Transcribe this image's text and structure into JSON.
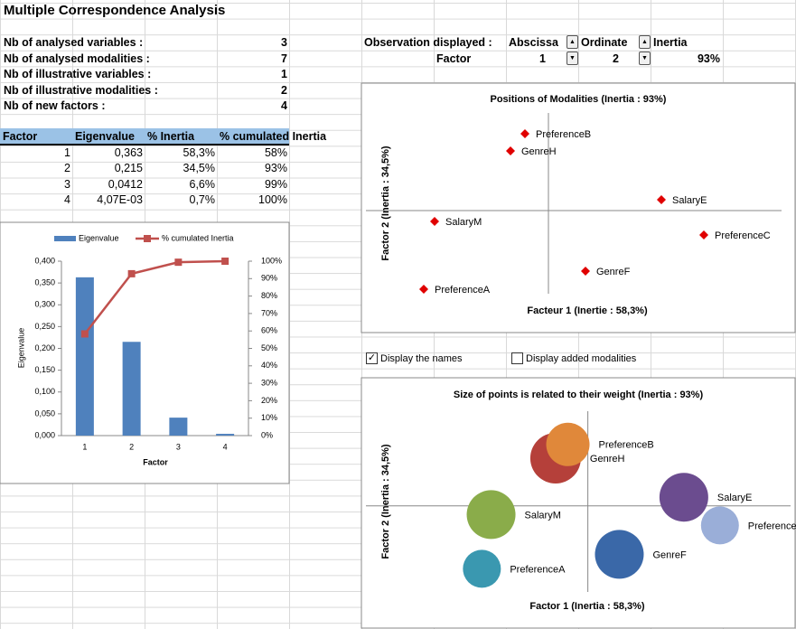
{
  "title": "Multiple Correspondence Analysis",
  "summary": [
    {
      "label": "Nb of analysed variables :",
      "value": "3"
    },
    {
      "label": "Nb of analysed modalities :",
      "value": "7"
    },
    {
      "label": "Nb of illustrative variables :",
      "value": "1"
    },
    {
      "label": "Nb of illustrative modalities :",
      "value": "2"
    },
    {
      "label": "Nb of new factors :",
      "value": "4"
    }
  ],
  "observation": {
    "label": "Observation displayed :",
    "abscissa_label": "Abscissa",
    "ordinate_label": "Ordinate",
    "inertia_label": "Inertia",
    "factor_label": "Factor",
    "abscissa": "1",
    "ordinate": "2",
    "inertia": "93%"
  },
  "table": {
    "header": [
      "Factor",
      "Eigenvalue",
      "% Inertia",
      "% cumulated Inertia"
    ],
    "rows": [
      [
        "1",
        "0,363",
        "58,3%",
        "58%"
      ],
      [
        "2",
        "0,215",
        "34,5%",
        "93%"
      ],
      [
        "3",
        "0,0412",
        "6,6%",
        "99%"
      ],
      [
        "4",
        "4,07E-03",
        "0,7%",
        "100%"
      ]
    ]
  },
  "checkboxes": [
    {
      "label": "Display the names",
      "checked": true
    },
    {
      "label": "Display added modalities",
      "checked": false
    }
  ],
  "chart_data": [
    {
      "type": "combo",
      "x_label": "Factor",
      "y_label": "Eigenvalue",
      "legend": "top",
      "categories": [
        "1",
        "2",
        "3",
        "4"
      ],
      "series": [
        {
          "name": "Eigenvalue",
          "type": "bar",
          "color": "#4f81bd",
          "values": [
            0.363,
            0.215,
            0.0412,
            0.00407
          ]
        },
        {
          "name": "% cumulated Inertia",
          "type": "line",
          "axis": "y2",
          "color": "#c0504d",
          "values": [
            58.3,
            92.8,
            99.4,
            100
          ]
        }
      ],
      "ylim": [
        0,
        0.4
      ],
      "yticks": [
        {
          "value": 0,
          "label": "0,000"
        },
        {
          "value": 0.05,
          "label": "0,050"
        },
        {
          "value": 0.1,
          "label": "0,100"
        },
        {
          "value": 0.15,
          "label": "0,150"
        },
        {
          "value": 0.2,
          "label": "0,200"
        },
        {
          "value": 0.25,
          "label": "0,250"
        },
        {
          "value": 0.3,
          "label": "0,300"
        },
        {
          "value": 0.35,
          "label": "0,350"
        },
        {
          "value": 0.4,
          "label": "0,400"
        }
      ],
      "y2lim": [
        0,
        100
      ],
      "y2ticks": [
        {
          "value": 0,
          "label": "0%"
        },
        {
          "value": 10,
          "label": "10%"
        },
        {
          "value": 20,
          "label": "20%"
        },
        {
          "value": 30,
          "label": "30%"
        },
        {
          "value": 40,
          "label": "40%"
        },
        {
          "value": 50,
          "label": "50%"
        },
        {
          "value": 60,
          "label": "60%"
        },
        {
          "value": 70,
          "label": "70%"
        },
        {
          "value": 80,
          "label": "80%"
        },
        {
          "value": 90,
          "label": "90%"
        },
        {
          "value": 100,
          "label": "100%"
        }
      ]
    },
    {
      "type": "scatter",
      "title": "Positions of Modalities (Inertia : 93%)",
      "x_label": "Facteur 1 (Inertie : 58,3%)",
      "y_label": "Factor 2 (Inertia : 34,5%)",
      "labels": [
        "GenreH",
        "PreferenceB",
        "SalaryE",
        "PreferenceC",
        "SalaryM",
        "GenreF",
        "PreferenceA"
      ],
      "x": [
        -0.42,
        -0.26,
        1.25,
        1.72,
        -1.26,
        0.41,
        -1.38
      ],
      "values": [
        0.66,
        0.85,
        0.12,
        -0.27,
        -0.12,
        -0.67,
        -0.87
      ],
      "color": "#e00000",
      "xlim": [
        -2.02,
        2.58
      ],
      "ylim": [
        -0.92,
        1.08
      ]
    },
    {
      "type": "bubble",
      "title": "Size of points is related to their weight (Inertia : 93%)",
      "x_label": "Factor 1 (Inertia : 58,3%)",
      "y_label": "Factor 2 (Inertia : 34,5%)",
      "labels": [
        "GenreH",
        "PreferenceB",
        "SalaryE",
        "PreferenceC",
        "SalaryM",
        "GenreF",
        "PreferenceA"
      ],
      "x": [
        -0.42,
        -0.26,
        1.25,
        1.72,
        -1.26,
        0.41,
        -1.38
      ],
      "values": [
        0.66,
        0.85,
        0.12,
        -0.27,
        -0.12,
        -0.67,
        -0.87
      ],
      "sizes": [
        28,
        24,
        27,
        21,
        27,
        27,
        21
      ],
      "colors": [
        "#b5403a",
        "#e0883a",
        "#6b4c8f",
        "#9aaed8",
        "#8aac4a",
        "#3a68a8",
        "#3a98b0"
      ],
      "xlim": [
        -2.89,
        2.64
      ],
      "ylim": [
        -1.19,
        1.31
      ]
    }
  ]
}
